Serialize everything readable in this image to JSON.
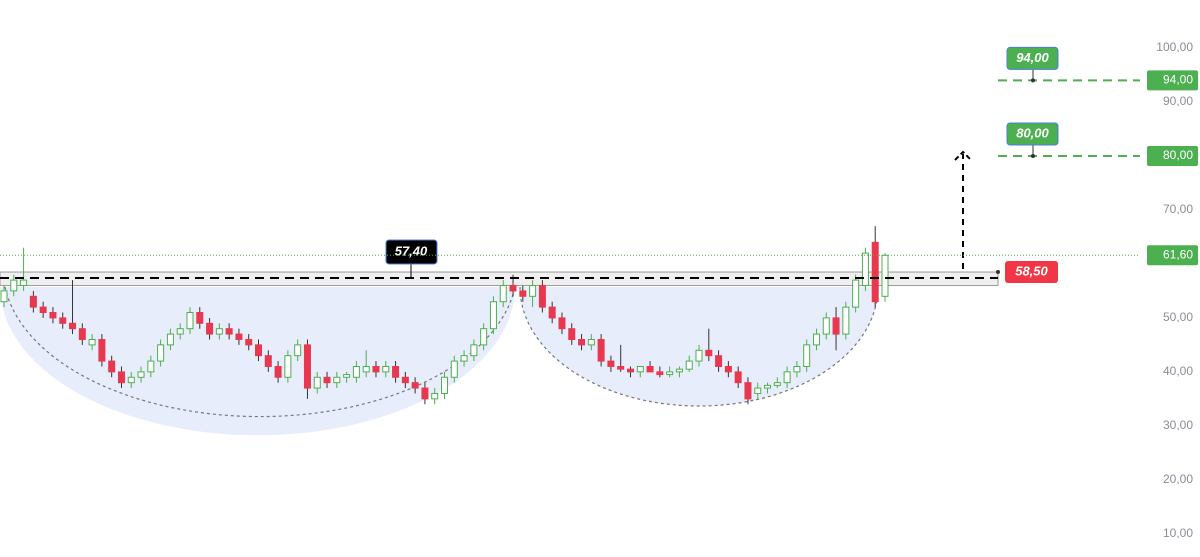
{
  "chart_data": {
    "type": "candlestick",
    "open": [
      53,
      55,
      56,
      54,
      52,
      51,
      50,
      49,
      48,
      45,
      46,
      42,
      40,
      38,
      39,
      40,
      42,
      45,
      47,
      48,
      51,
      49,
      47,
      48,
      47,
      46,
      45,
      43,
      41,
      39,
      43,
      45,
      37,
      39,
      38,
      39,
      39,
      40,
      41,
      40,
      41,
      39,
      38,
      37,
      35,
      36,
      39,
      42,
      43,
      45,
      48,
      53,
      56,
      55,
      54,
      56,
      52,
      50,
      48,
      46,
      45,
      46,
      42,
      41,
      40.5,
      40,
      41,
      40,
      39.5,
      40,
      40.5,
      42,
      44,
      43,
      41,
      40,
      38,
      36,
      37,
      37.5,
      38,
      40,
      41,
      45,
      47,
      50,
      47,
      52,
      56,
      64,
      54
    ],
    "high": [
      56,
      58,
      63,
      55,
      53,
      52,
      51,
      57,
      49,
      47,
      47,
      43,
      41,
      40,
      41,
      43,
      46,
      48,
      49,
      52,
      52,
      50,
      49,
      49,
      48,
      47,
      46,
      44,
      42,
      44,
      46,
      46,
      40,
      40,
      40,
      40,
      42,
      44,
      42,
      42,
      42,
      40,
      39,
      38,
      37,
      40,
      43,
      44,
      46,
      49,
      54,
      57,
      58,
      56,
      57,
      57,
      53,
      51,
      49,
      47,
      47,
      47,
      43,
      45,
      41,
      41,
      42,
      41,
      41,
      41,
      43,
      45,
      48,
      44,
      42,
      41,
      39,
      38,
      38,
      39,
      41,
      42,
      46,
      48,
      51,
      52,
      53,
      58,
      63,
      67,
      62
    ],
    "low": [
      52,
      54,
      55,
      51,
      50,
      49,
      48,
      47,
      45,
      44,
      41,
      39,
      37,
      37,
      38,
      39,
      41,
      44,
      46,
      47,
      48,
      46,
      46,
      46,
      45,
      44,
      42,
      40,
      38,
      38,
      42,
      35,
      36,
      37,
      37,
      38,
      38,
      39,
      39,
      39,
      38,
      37,
      36,
      34,
      34,
      35,
      38,
      41,
      42,
      44,
      47,
      52,
      54,
      53,
      52,
      51,
      49,
      47,
      45,
      44,
      44,
      41,
      40,
      40,
      39,
      39,
      40,
      39,
      39,
      39,
      40,
      41,
      42,
      40,
      39,
      37,
      34,
      35,
      36,
      37,
      37,
      39,
      40,
      44,
      46,
      44,
      46,
      51,
      55,
      52,
      53
    ],
    "close": [
      55,
      57,
      57,
      52,
      51,
      50,
      49,
      48,
      46,
      46,
      42,
      40,
      38,
      39,
      40,
      42,
      45,
      47,
      48,
      51,
      49,
      47,
      48,
      47,
      46,
      45,
      43,
      41,
      39,
      43,
      45,
      37,
      39,
      38,
      39,
      39.5,
      41,
      41,
      40,
      41,
      39,
      38,
      37,
      35,
      36,
      39,
      42,
      43,
      45,
      48,
      53,
      56,
      55,
      54,
      56,
      52,
      50,
      48,
      46,
      45,
      46,
      42,
      41,
      40.5,
      40,
      41,
      40,
      39.5,
      40,
      40.5,
      42,
      44,
      43,
      41,
      40,
      38,
      35,
      37,
      37.5,
      38,
      40,
      41,
      45,
      47,
      50,
      47,
      52,
      57,
      62,
      53,
      61.6
    ],
    "up_color": "#4caf50",
    "down_color": "#e8384f",
    "ylim": [
      5.7,
      108.9
    ],
    "yticks": [
      {
        "value": 10,
        "label": "10,00"
      },
      {
        "value": 20,
        "label": "20,00"
      },
      {
        "value": 30,
        "label": "30,00"
      },
      {
        "value": 40,
        "label": "40,00"
      },
      {
        "value": 50,
        "label": "50,00"
      },
      {
        "value": 70,
        "label": "70,00"
      },
      {
        "value": 90,
        "label": "90,00"
      },
      {
        "value": 100,
        "label": "100,00"
      }
    ],
    "zone": [
      56,
      58.5
    ],
    "levels": [
      {
        "value": 57.4,
        "label": "57,40",
        "style": "callout",
        "color": "#000000"
      },
      {
        "value": 94,
        "label": "94,00",
        "style": "target",
        "color": "#4caf50"
      },
      {
        "value": 80,
        "label": "80,00",
        "style": "target",
        "color": "#4caf50"
      },
      {
        "value": 58.5,
        "label": "58,50",
        "style": "tag",
        "color": "#f23645"
      },
      {
        "value": 61.6,
        "label": "61,60",
        "style": "last-price",
        "color": "#4caf50"
      }
    ]
  }
}
